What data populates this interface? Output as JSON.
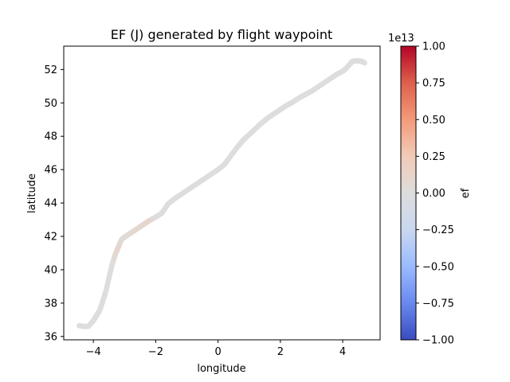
{
  "chart_data": {
    "type": "scatter",
    "title": "EF (J) generated by flight waypoint",
    "xlabel": "longitude",
    "ylabel": "latitude",
    "xlim": [
      -4.95,
      5.2
    ],
    "ylim": [
      35.8,
      53.4
    ],
    "xticks": [
      -4,
      -2,
      0,
      2,
      4
    ],
    "xtick_labels": [
      "−4",
      "−2",
      "0",
      "2",
      "4"
    ],
    "yticks": [
      36,
      38,
      40,
      42,
      44,
      46,
      48,
      50,
      52
    ],
    "ytick_labels": [
      "36",
      "38",
      "40",
      "42",
      "44",
      "46",
      "48",
      "50",
      "52"
    ],
    "grid": false,
    "colorbar": {
      "label": "ef",
      "offset_text": "1e13",
      "colormap": "coolwarm",
      "vmin": -1.0,
      "vmax": 1.0,
      "ticks": [
        1.0,
        0.75,
        0.5,
        0.25,
        0.0,
        -0.25,
        -0.5,
        -0.75,
        -1.0
      ],
      "tick_labels": [
        "1.00",
        "0.75",
        "0.50",
        "0.25",
        "0.00",
        "−0.25",
        "−0.50",
        "−0.75",
        "−1.00"
      ],
      "colors": [
        "#3b4cc0",
        "#6889ee",
        "#9abbff",
        "#c9d7f0",
        "#dddddd",
        "#f2cbb7",
        "#f49a7b",
        "#dd604c",
        "#b40426"
      ]
    },
    "series": [
      {
        "x": [
          -4.45,
          -4.3,
          -4.15,
          -4.0,
          -3.9,
          -3.8,
          -3.7,
          -3.6,
          -3.5,
          -3.4,
          -3.3,
          -3.2,
          -3.1,
          -3.0,
          -2.8,
          -2.6,
          -2.4,
          -2.2,
          -2.0,
          -1.8,
          -1.6,
          -1.4,
          -1.2,
          -1.0,
          -0.8,
          -0.6,
          -0.4,
          -0.2,
          0.0,
          0.2,
          0.4,
          0.6,
          0.8,
          1.0,
          1.2,
          1.4,
          1.6,
          1.8,
          2.0,
          2.2,
          2.4,
          2.6,
          2.8,
          3.0,
          3.2,
          3.4,
          3.6,
          3.8,
          4.0,
          4.1,
          4.2,
          4.3,
          4.4,
          4.5,
          4.6,
          4.7
        ],
        "y": [
          36.65,
          36.6,
          36.62,
          36.95,
          37.25,
          37.55,
          38.1,
          38.7,
          39.5,
          40.3,
          40.9,
          41.35,
          41.8,
          41.95,
          42.2,
          42.45,
          42.7,
          42.95,
          43.15,
          43.4,
          43.95,
          44.25,
          44.5,
          44.75,
          45.0,
          45.25,
          45.5,
          45.75,
          46.0,
          46.3,
          46.8,
          47.3,
          47.75,
          48.1,
          48.45,
          48.8,
          49.1,
          49.35,
          49.6,
          49.85,
          50.05,
          50.3,
          50.5,
          50.7,
          50.95,
          51.2,
          51.45,
          51.7,
          51.9,
          52.05,
          52.25,
          52.48,
          52.52,
          52.52,
          52.5,
          52.4
        ],
        "ef": [
          0.0,
          0.0,
          0.0,
          0.0,
          0.0,
          0.0,
          0.0,
          0.0,
          0.0,
          0.0,
          0.06,
          0.12,
          0.04,
          0.03,
          0.05,
          0.08,
          0.1,
          0.12,
          0.01,
          0.0,
          0.0,
          0.0,
          0.0,
          0.0,
          0.0,
          0.0,
          0.0,
          0.0,
          0.0,
          0.0,
          0.0,
          0.0,
          0.0,
          0.0,
          0.0,
          0.0,
          0.0,
          0.0,
          0.0,
          0.0,
          0.0,
          0.0,
          0.0,
          0.0,
          0.0,
          0.0,
          0.0,
          0.0,
          0.0,
          0.0,
          0.0,
          0.0,
          0.0,
          0.0,
          0.0,
          0.0
        ]
      }
    ]
  }
}
